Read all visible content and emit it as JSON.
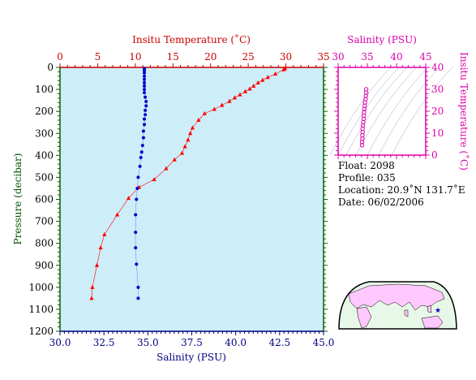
{
  "info": {
    "float": "Float:  2098",
    "profile": "Profile:  035",
    "location": "Location:  20.9˚N  131.7˚E",
    "date": "Date:  06/02/2006"
  },
  "chart_data": [
    {
      "type": "scatter",
      "title": "",
      "top_axis_label": "Insitu Temperature (˚C)",
      "bottom_axis_label": "Salinity (PSU)",
      "left_axis_label": "Pressure (decibar)",
      "top_axis": {
        "min": 0,
        "max": 35,
        "ticks": [
          0,
          5,
          10,
          15,
          20,
          25,
          30,
          35
        ],
        "color": "#cc0000"
      },
      "bottom_axis": {
        "min": 30.0,
        "max": 45.0,
        "ticks": [
          "30.0",
          "32.5",
          "35.0",
          "37.5",
          "40.0",
          "42.5",
          "45.0"
        ],
        "color": "#000080"
      },
      "y_axis": {
        "min": 0,
        "max": 1200,
        "reversed": true,
        "ticks": [
          0,
          100,
          200,
          300,
          400,
          500,
          600,
          700,
          800,
          900,
          1000,
          1100,
          1200
        ],
        "color": "#006400"
      },
      "background": "#cdeef8",
      "series": [
        {
          "marker": "triangle",
          "color": "#ff0000",
          "x_axis": "top",
          "points": [
            [
              29.9,
              5
            ],
            [
              29.7,
              10
            ],
            [
              28.6,
              30
            ],
            [
              27.6,
              45
            ],
            [
              26.9,
              58
            ],
            [
              26.3,
              70
            ],
            [
              25.7,
              85
            ],
            [
              25.2,
              98
            ],
            [
              24.6,
              110
            ],
            [
              23.9,
              124
            ],
            [
              23.2,
              138
            ],
            [
              22.5,
              154
            ],
            [
              21.5,
              172
            ],
            [
              20.5,
              190
            ],
            [
              19.2,
              210
            ],
            [
              18.4,
              240
            ],
            [
              17.6,
              275
            ],
            [
              17.3,
              300
            ],
            [
              17.0,
              330
            ],
            [
              16.6,
              360
            ],
            [
              16.2,
              390
            ],
            [
              15.2,
              420
            ],
            [
              14.1,
              460
            ],
            [
              12.5,
              510
            ],
            [
              10.5,
              545
            ],
            [
              9.1,
              595
            ],
            [
              7.6,
              670
            ],
            [
              5.9,
              760
            ],
            [
              5.4,
              820
            ],
            [
              4.9,
              900
            ],
            [
              4.3,
              1000
            ],
            [
              4.2,
              1050
            ]
          ]
        },
        {
          "marker": "circle",
          "color": "#0000cc",
          "x_axis": "bottom",
          "points": [
            [
              34.8,
              5
            ],
            [
              34.8,
              15
            ],
            [
              34.8,
              25
            ],
            [
              34.8,
              40
            ],
            [
              34.8,
              55
            ],
            [
              34.8,
              70
            ],
            [
              34.8,
              85
            ],
            [
              34.8,
              100
            ],
            [
              34.8,
              115
            ],
            [
              34.85,
              135
            ],
            [
              34.9,
              155
            ],
            [
              34.9,
              175
            ],
            [
              34.85,
              195
            ],
            [
              34.85,
              215
            ],
            [
              34.8,
              235
            ],
            [
              34.8,
              260
            ],
            [
              34.75,
              290
            ],
            [
              34.75,
              320
            ],
            [
              34.7,
              355
            ],
            [
              34.65,
              385
            ],
            [
              34.6,
              410
            ],
            [
              34.55,
              450
            ],
            [
              34.45,
              500
            ],
            [
              34.4,
              550
            ],
            [
              34.35,
              600
            ],
            [
              34.3,
              670
            ],
            [
              34.3,
              750
            ],
            [
              34.3,
              820
            ],
            [
              34.35,
              895
            ],
            [
              34.45,
              1000
            ],
            [
              34.45,
              1050
            ]
          ]
        }
      ]
    },
    {
      "type": "scatter",
      "title": "",
      "x_axis_label": "Salinity (PSU)",
      "y_axis_label": "Insitu Temperature (˚C)",
      "x_axis": {
        "min": 30,
        "max": 45,
        "ticks": [
          30,
          35,
          40,
          45
        ]
      },
      "y_axis": {
        "min": 0,
        "max": 40,
        "ticks": [
          0,
          10,
          20,
          30,
          40
        ]
      },
      "color": "#dd00aa",
      "points": [
        [
          34.8,
          30
        ],
        [
          34.8,
          28.5
        ],
        [
          34.75,
          27
        ],
        [
          34.7,
          25.5
        ],
        [
          34.6,
          24
        ],
        [
          34.55,
          22.5
        ],
        [
          34.5,
          21
        ],
        [
          34.45,
          19.5
        ],
        [
          34.4,
          18
        ],
        [
          34.35,
          16.5
        ],
        [
          34.3,
          15
        ],
        [
          34.25,
          13.5
        ],
        [
          34.2,
          12
        ],
        [
          34.2,
          10.5
        ],
        [
          34.15,
          9
        ],
        [
          34.15,
          7.5
        ],
        [
          34.1,
          6
        ],
        [
          34.1,
          4.5
        ]
      ]
    }
  ],
  "map": {
    "marker_color": "#0000cc",
    "land_color": "#ffc8ff",
    "ocean_color": "#e8f8e8"
  }
}
